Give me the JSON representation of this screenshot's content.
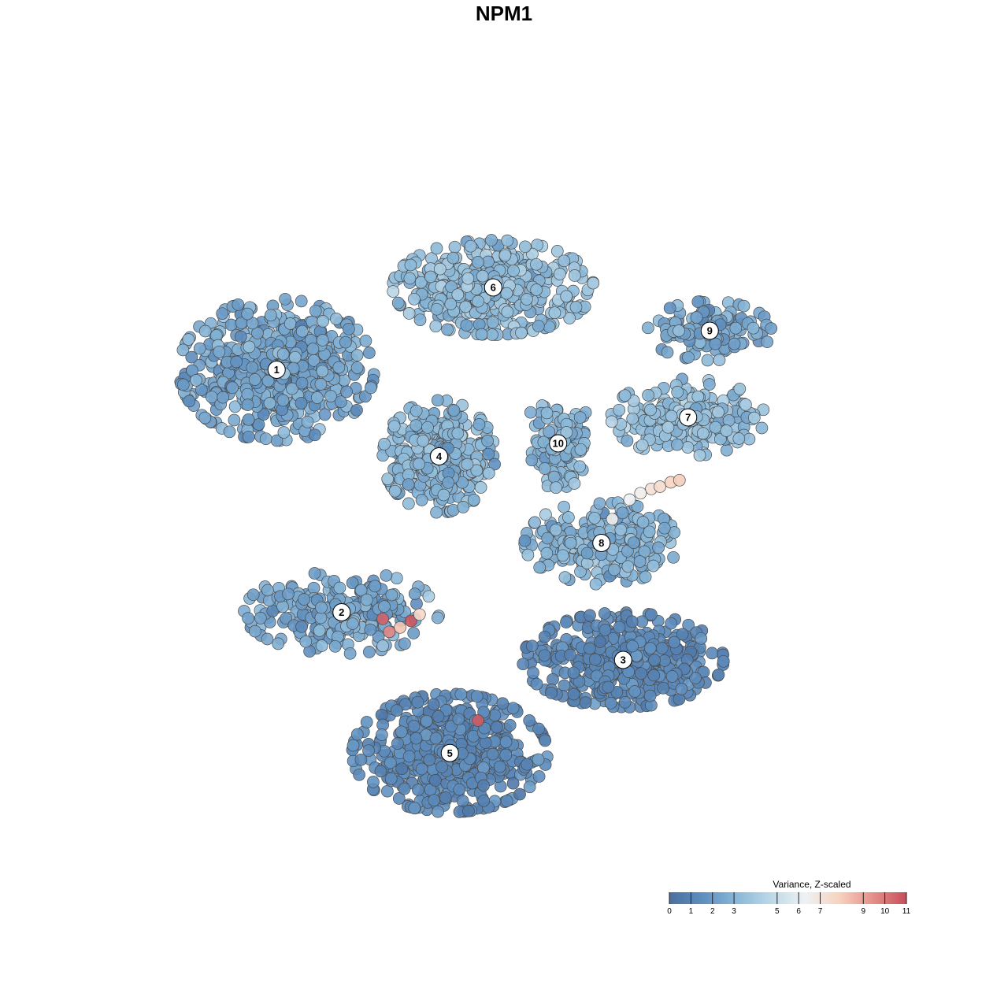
{
  "chart_data": {
    "type": "scatter",
    "title": "NPM1",
    "xlabel": "",
    "ylabel": "",
    "grid": false,
    "legend": {
      "title": "Variance, Z-scaled",
      "placement": "bottom-right",
      "range": [
        0,
        11
      ],
      "ticks": [
        0,
        1,
        2,
        3,
        5,
        6,
        7,
        9,
        10,
        11
      ],
      "tick_labels": [
        "0",
        "1",
        "2",
        "3",
        "5",
        "6",
        "7",
        "9",
        "10",
        "11"
      ],
      "colors": [
        "#4a6f9f",
        "#5f8fbf",
        "#8ab8d8",
        "#bcd8e8",
        "#eef2f4",
        "#f7d3c0",
        "#e5908a",
        "#c64f5a"
      ]
    },
    "clusters": [
      {
        "label": "1",
        "x": -10.5,
        "y": 6.2,
        "sx": 3.3,
        "sy": 2.4,
        "n": 620,
        "mean": 2.4,
        "sd": 0.55
      },
      {
        "label": "2",
        "x": -7.5,
        "y": -5.0,
        "sx": 3.3,
        "sy": 1.4,
        "n": 260,
        "mean": 2.5,
        "sd": 0.5
      },
      {
        "label": "3",
        "x": 5.5,
        "y": -7.2,
        "sx": 3.4,
        "sy": 1.6,
        "n": 420,
        "mean": 1.2,
        "sd": 0.35
      },
      {
        "label": "4",
        "x": -3.0,
        "y": 2.2,
        "sx": 1.9,
        "sy": 1.9,
        "n": 380,
        "mean": 3.0,
        "sd": 0.45
      },
      {
        "label": "5",
        "x": -2.5,
        "y": -11.5,
        "sx": 3.3,
        "sy": 2.0,
        "n": 520,
        "mean": 1.3,
        "sd": 0.35
      },
      {
        "label": "6",
        "x": -0.5,
        "y": 10.0,
        "sx": 3.4,
        "sy": 1.6,
        "n": 440,
        "mean": 3.3,
        "sd": 0.5
      },
      {
        "label": "7",
        "x": 8.5,
        "y": 4.0,
        "sx": 2.6,
        "sy": 1.3,
        "n": 230,
        "mean": 3.5,
        "sd": 0.5
      },
      {
        "label": "8",
        "x": 4.5,
        "y": -1.8,
        "sx": 2.6,
        "sy": 1.4,
        "n": 260,
        "mean": 3.0,
        "sd": 0.5
      },
      {
        "label": "9",
        "x": 9.5,
        "y": 8.0,
        "sx": 2.1,
        "sy": 1.0,
        "n": 120,
        "mean": 2.5,
        "sd": 0.5
      },
      {
        "label": "10",
        "x": 2.5,
        "y": 2.8,
        "sx": 1.3,
        "sy": 1.5,
        "n": 120,
        "mean": 3.0,
        "sd": 0.4
      }
    ],
    "extra_points": [
      {
        "x": 6.8,
        "y": 0.7,
        "value": 7.2
      },
      {
        "x": 7.2,
        "y": 0.8,
        "value": 7.5
      },
      {
        "x": 7.7,
        "y": 1.0,
        "value": 7.8
      },
      {
        "x": 8.1,
        "y": 1.1,
        "value": 8.0
      },
      {
        "x": 6.3,
        "y": 0.5,
        "value": 6.6
      },
      {
        "x": 5.8,
        "y": 0.2,
        "value": 6.3
      },
      {
        "x": 5.0,
        "y": -0.7,
        "value": 6.5
      },
      {
        "x": -5.6,
        "y": -5.3,
        "value": 10.5
      },
      {
        "x": -4.3,
        "y": -5.4,
        "value": 10.8
      },
      {
        "x": -5.3,
        "y": -5.9,
        "value": 9.6
      },
      {
        "x": -4.8,
        "y": -5.7,
        "value": 8.2
      },
      {
        "x": -3.9,
        "y": -5.1,
        "value": 7.6
      },
      {
        "x": -1.2,
        "y": -10.0,
        "value": 10.7
      }
    ],
    "axis": {
      "xlim": [
        -20,
        20
      ],
      "ylim": [
        -20,
        20
      ]
    }
  }
}
